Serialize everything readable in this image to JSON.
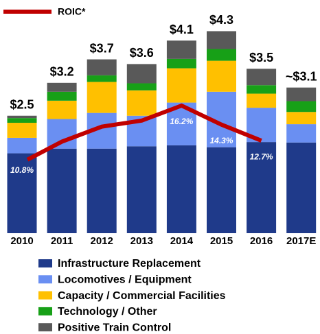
{
  "chart_data": {
    "type": "stacked-bar-line",
    "categories": [
      "2010",
      "2011",
      "2012",
      "2013",
      "2014",
      "2015",
      "2016",
      "2017E"
    ],
    "series": [
      {
        "name": "Infrastructure Replacement",
        "color": "#1f3a8a",
        "values": [
          1.7,
          1.8,
          1.8,
          1.85,
          1.87,
          1.83,
          1.94,
          1.93
        ]
      },
      {
        "name": "Locomotives / Equipment",
        "color": "#6a8ff2",
        "values": [
          0.33,
          0.63,
          0.76,
          0.65,
          0.91,
          1.18,
          0.73,
          0.39
        ]
      },
      {
        "name": "Capacity / Commercial Facilities",
        "color": "#ffc000",
        "values": [
          0.32,
          0.39,
          0.66,
          0.54,
          0.73,
          0.66,
          0.3,
          0.26
        ]
      },
      {
        "name": "Technology / Other",
        "color": "#17a017",
        "values": [
          0.1,
          0.19,
          0.14,
          0.15,
          0.2,
          0.25,
          0.18,
          0.23
        ]
      },
      {
        "name": "Positive Train Control",
        "color": "#595959",
        "values": [
          0.05,
          0.19,
          0.34,
          0.41,
          0.39,
          0.38,
          0.35,
          0.29
        ]
      }
    ],
    "totals": {
      "values": [
        2.5,
        3.2,
        3.7,
        3.6,
        4.1,
        4.3,
        3.5,
        3.1
      ],
      "value_labels": [
        "$2.5",
        "$3.2",
        "$3.7",
        "$3.6",
        "$4.1",
        "$4.3",
        "$3.5",
        "~$3.1"
      ]
    },
    "line": {
      "name": "ROIC*",
      "color": "#c00000",
      "values": [
        10.8,
        12.6,
        14.1,
        14.7,
        16.2,
        14.3,
        12.7,
        null
      ],
      "value_labels": [
        "10.8%",
        null,
        null,
        null,
        "16.2%",
        "14.3%",
        "12.7%",
        null
      ]
    }
  }
}
